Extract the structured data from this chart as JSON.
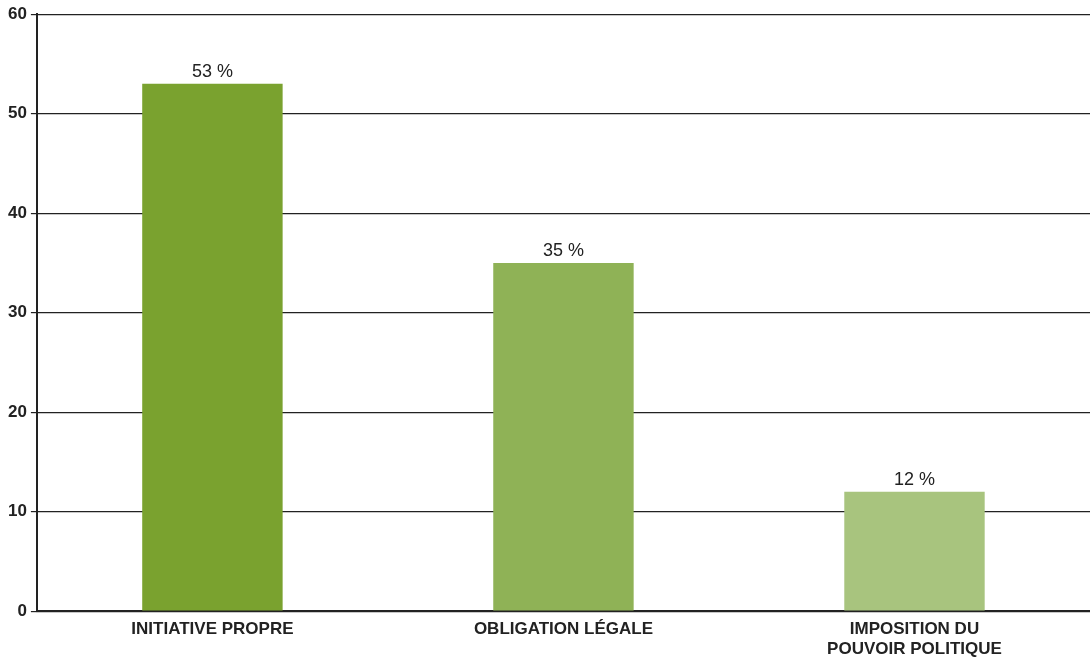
{
  "chart_data": {
    "type": "bar",
    "categories": [
      "INITIATIVE PROPRE",
      "OBLIGATION LÉGALE",
      "IMPOSITION DU POUVOIR POLITIQUE"
    ],
    "values": [
      53,
      35,
      12
    ],
    "colors": [
      "#7aa22f",
      "#8fb256",
      "#a8c47e"
    ],
    "value_labels": [
      "53 %",
      "35 %",
      "12 %"
    ],
    "ylim": [
      0,
      60
    ],
    "yticks": [
      0,
      10,
      20,
      30,
      40,
      50,
      60
    ],
    "grid": "y",
    "legend": false
  }
}
